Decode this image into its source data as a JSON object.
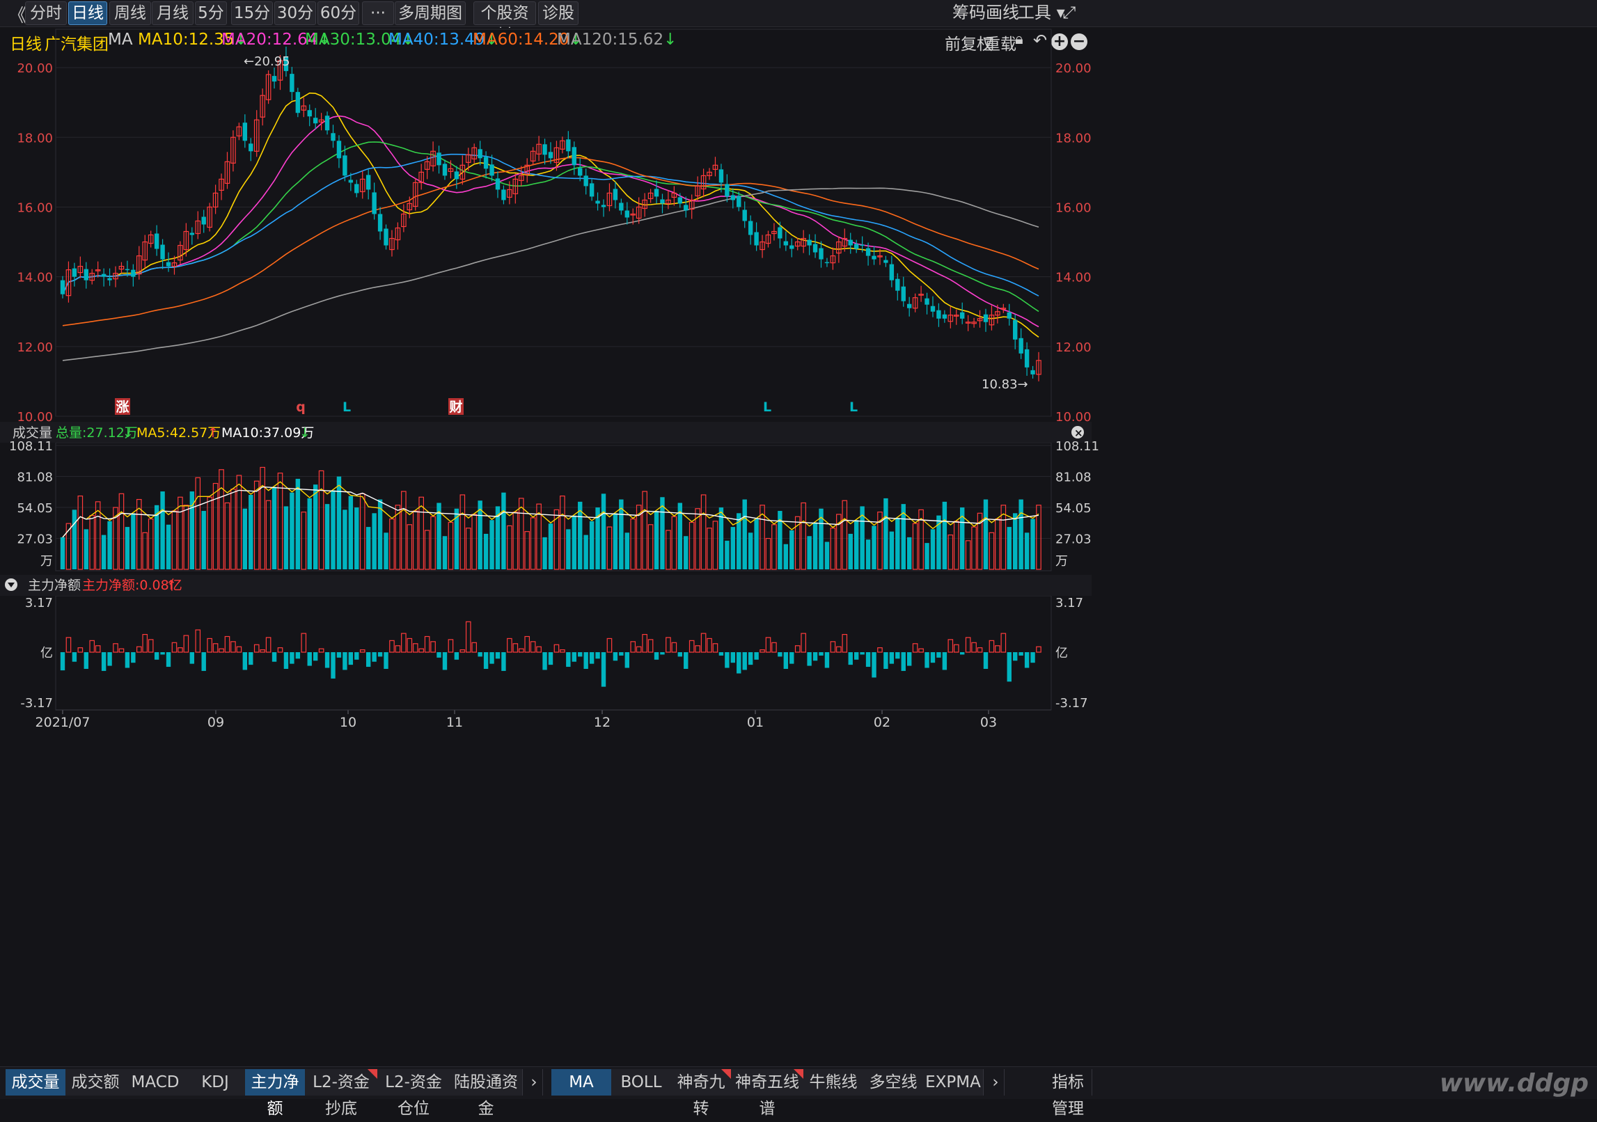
{
  "toolbar": {
    "back_label": "《",
    "periods": [
      "分时",
      "日线",
      "周线",
      "月线",
      "5分",
      "15分",
      "30分",
      "60分",
      "···",
      "多周期图 ▾",
      "个股资料",
      "诊股"
    ],
    "active_period": "日线",
    "right_items": [
      "筹码",
      "画线",
      "工具 ▾",
      "⤢"
    ]
  },
  "info": {
    "period": "日线",
    "stock_name": "广汽集团",
    "indicator": "MA",
    "ma_values": [
      {
        "label": "MA10:12.35",
        "arrow": "↓",
        "color": "#ffd400"
      },
      {
        "label": "MA20:12.64",
        "arrow": "↓",
        "color": "#ff3fd0"
      },
      {
        "label": "MA30:13.04",
        "arrow": "↓",
        "color": "#35d34a"
      },
      {
        "label": "MA40:13.49",
        "arrow": "↓",
        "color": "#2aa5ff"
      },
      {
        "label": "MA60:14.20",
        "arrow": "↓",
        "color": "#ff6a1a"
      },
      {
        "label": "MA120:15.62",
        "arrow": "↓",
        "color": "#a0a0a0"
      }
    ],
    "adjust": "前复权",
    "redraw": "重载"
  },
  "price_panel": {
    "y_ticks": [
      "20.00",
      "18.00",
      "16.00",
      "14.00",
      "12.00",
      "10.00"
    ],
    "high_label": "←20.95",
    "low_label": "10.83→",
    "markers": [
      "涨",
      "q",
      "L",
      "财",
      "L",
      "L"
    ]
  },
  "volume_panel": {
    "title": "成交量",
    "total": "总量:27.12万",
    "total_arrow": "↓",
    "ma5": "MA5:42.57万",
    "ma5_arrow": "↑",
    "ma10": "MA10:37.09万",
    "ma10_arrow": "↓",
    "y_ticks": [
      "108.11",
      "81.08",
      "54.05",
      "27.03",
      "万"
    ]
  },
  "capital_panel": {
    "title": "主力净额",
    "value": "主力净额:0.08亿",
    "value_arrow": "↑",
    "y_ticks": [
      "3.17",
      "亿",
      "-3.17"
    ]
  },
  "x_axis": [
    "2021/07",
    "09",
    "10",
    "11",
    "12",
    "01",
    "02",
    "03"
  ],
  "bottom_tabs_left": [
    {
      "label": "成交量",
      "active": true,
      "flag": false
    },
    {
      "label": "成交额",
      "active": false,
      "flag": false
    },
    {
      "label": "MACD",
      "active": false,
      "flag": false
    },
    {
      "label": "KDJ",
      "active": false,
      "flag": false
    },
    {
      "label": "主力净额",
      "active": true,
      "flag": false
    },
    {
      "label": "L2-资金抄底",
      "active": false,
      "flag": true
    },
    {
      "label": "L2-资金仓位",
      "active": false,
      "flag": false
    },
    {
      "label": "陆股通资金",
      "active": false,
      "flag": false
    }
  ],
  "bottom_tabs_right": [
    {
      "label": "MA",
      "active": true,
      "flag": false
    },
    {
      "label": "BOLL",
      "active": false,
      "flag": false
    },
    {
      "label": "神奇九转",
      "active": false,
      "flag": true
    },
    {
      "label": "神奇五线谱",
      "active": false,
      "flag": true
    },
    {
      "label": "牛熊线",
      "active": false,
      "flag": false
    },
    {
      "label": "多空线",
      "active": false,
      "flag": false
    },
    {
      "label": "EXPMA",
      "active": false,
      "flag": false
    }
  ],
  "bottom_more": "›",
  "bottom_last": "指标管理",
  "watermark": "www.ddgp",
  "colors": {
    "up": "#ff3b3b",
    "down": "#00b5c0",
    "grid": "#2a2a30",
    "axis_text": "#d04040"
  },
  "chart_data": {
    "type": "candlestick",
    "title": "广汽集团 日线",
    "ylim": [
      10,
      21
    ],
    "price_closes": [
      13.5,
      14.2,
      14.0,
      14.3,
      13.9,
      14.1,
      14.2,
      14.0,
      13.9,
      14.1,
      14.3,
      14.2,
      14.0,
      14.6,
      15.0,
      15.2,
      14.8,
      14.5,
      14.3,
      14.4,
      14.9,
      15.3,
      15.2,
      15.6,
      15.5,
      16.0,
      16.4,
      16.8,
      17.3,
      18.0,
      18.3,
      17.9,
      17.6,
      18.5,
      19.2,
      19.8,
      19.6,
      20.2,
      19.9,
      19.3,
      18.7,
      18.9,
      18.6,
      18.4,
      18.5,
      18.2,
      17.9,
      17.4,
      16.9,
      16.7,
      16.4,
      16.8,
      16.5,
      15.8,
      15.3,
      14.9,
      15.1,
      15.4,
      15.8,
      16.1,
      16.7,
      17.0,
      17.3,
      17.6,
      17.2,
      16.9,
      17.1,
      16.8,
      17.2,
      17.5,
      17.7,
      17.4,
      17.1,
      16.9,
      16.5,
      16.2,
      16.5,
      16.8,
      16.9,
      17.2,
      17.6,
      17.8,
      17.5,
      17.4,
      17.7,
      17.9,
      17.6,
      17.2,
      16.9,
      16.6,
      16.3,
      16.1,
      16.0,
      16.4,
      16.2,
      15.9,
      15.7,
      15.8,
      16.0,
      16.2,
      16.4,
      16.3,
      16.1,
      16.2,
      16.4,
      16.1,
      15.9,
      16.2,
      16.6,
      16.9,
      17.0,
      17.2,
      16.7,
      16.3,
      16.2,
      16.0,
      15.6,
      15.2,
      14.9,
      15.0,
      15.2,
      15.3,
      15.1,
      14.9,
      14.8,
      15.0,
      15.1,
      14.9,
      14.7,
      14.5,
      14.4,
      14.6,
      15.0,
      15.1,
      14.9,
      14.8,
      14.9,
      14.6,
      14.5,
      14.6,
      14.4,
      13.9,
      13.6,
      13.3,
      13.1,
      13.4,
      13.5,
      13.2,
      13.0,
      12.8,
      12.8,
      12.9,
      12.9,
      12.8,
      12.7,
      12.7,
      12.8,
      12.7,
      12.9,
      13.0,
      13.1,
      12.8,
      12.2,
      11.8,
      11.4,
      11.2,
      11.6
    ],
    "volume_max": 108.11,
    "volume_unit": "万",
    "capital_range": [
      -3.17,
      3.17
    ],
    "capital_unit": "亿"
  }
}
